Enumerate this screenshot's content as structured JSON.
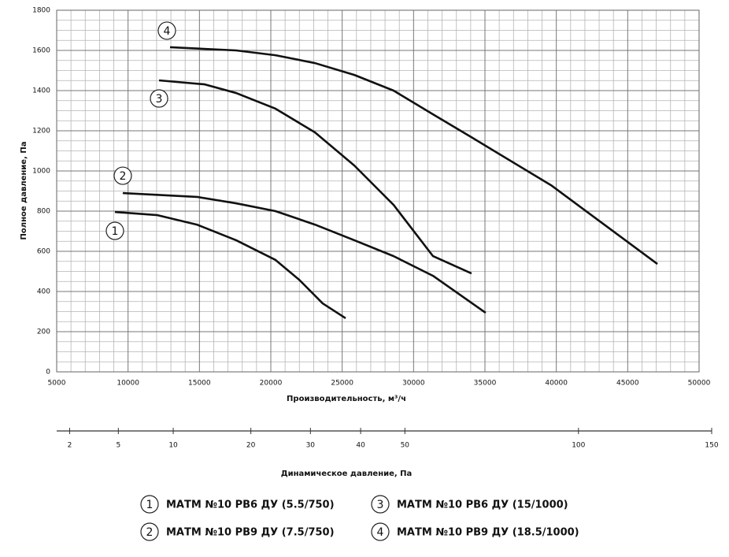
{
  "chart_data": {
    "type": "line",
    "y_label": "Полное давление, Па",
    "x_label": "Производительность, м³/ч",
    "x2_label": "Динамическое давление, Па",
    "xlim": [
      5000,
      50000
    ],
    "xticks": [
      5000,
      10000,
      15000,
      20000,
      25000,
      30000,
      35000,
      40000,
      45000,
      50000
    ],
    "ylim": [
      0,
      1800
    ],
    "yticks": [
      0,
      200,
      400,
      600,
      800,
      1000,
      1200,
      1400,
      1600,
      1800
    ],
    "x2lim": [
      1.43,
      150
    ],
    "x2scale": "sqrt",
    "x2ticks": [
      2,
      5,
      10,
      20,
      30,
      40,
      50,
      100,
      150
    ],
    "grid": true,
    "legend": "bottom",
    "series": [
      {
        "name": "МАТМ №10 РВ6 ДУ (5.5/750)",
        "label": "1",
        "color": "#111111",
        "x": [
          9080,
          12060,
          14820,
          17570,
          20330,
          21980,
          23630,
          25240
        ],
        "values": [
          796,
          780,
          733,
          655,
          557,
          459,
          341,
          267
        ]
      },
      {
        "name": "МАТМ №10 РВ9 ДУ (7.5/750)",
        "label": "2",
        "color": "#111111",
        "x": [
          9630,
          14820,
          17570,
          20330,
          23090,
          25850,
          28600,
          31360,
          35050
        ],
        "values": [
          890,
          871,
          839,
          800,
          733,
          655,
          576,
          478,
          294
        ]
      },
      {
        "name": "МАТМ №10 РВ6 ДУ (15/1000)",
        "label": "3",
        "color": "#111111",
        "x": [
          12170,
          15370,
          17570,
          20330,
          23090,
          25850,
          28600,
          31360,
          34060
        ],
        "values": [
          1451,
          1431,
          1388,
          1310,
          1192,
          1027,
          831,
          576,
          490
        ]
      },
      {
        "name": "МАТМ №10 РВ9 ДУ (18.5/1000)",
        "label": "4",
        "color": "#111111",
        "x": [
          12940,
          17570,
          20330,
          23090,
          25850,
          28600,
          31360,
          34120,
          39630,
          47080
        ],
        "values": [
          1616,
          1600,
          1576,
          1537,
          1478,
          1400,
          1282,
          1165,
          929,
          537
        ]
      }
    ]
  }
}
